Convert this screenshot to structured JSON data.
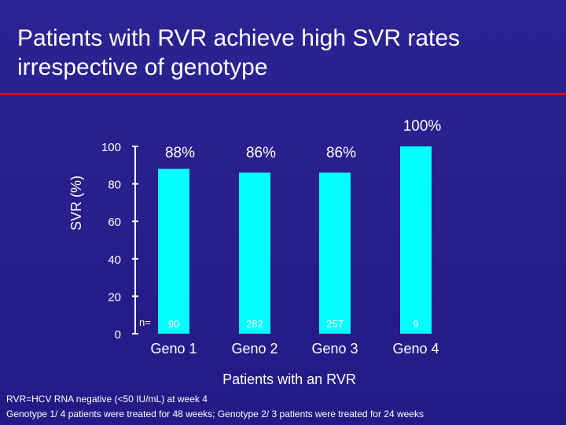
{
  "title": "Patients with RVR achieve high SVR rates irrespective of genotype",
  "chart_data": {
    "type": "bar",
    "categories": [
      "Geno 1",
      "Geno 2",
      "Geno 3",
      "Geno 4"
    ],
    "values": [
      88,
      86,
      86,
      100
    ],
    "value_labels": [
      "88%",
      "86%",
      "86%",
      "100%"
    ],
    "n_prefix": "n=",
    "n_values": [
      "90",
      "282",
      "257",
      "9"
    ],
    "ylabel": "SVR (%)",
    "xlabel": "Patients with an RVR",
    "ylim": [
      0,
      100
    ],
    "yticks": [
      0,
      20,
      40,
      60,
      80,
      100
    ],
    "bar_color": "#00ffff",
    "axis_color": "#ffffff"
  },
  "footnotes": [
    "RVR=HCV RNA negative (<50 IU/mL) at week 4",
    "Genotype 1/ 4 patients were treated for 48 weeks; Genotype 2/ 3 patients were treated for 24 weeks"
  ]
}
